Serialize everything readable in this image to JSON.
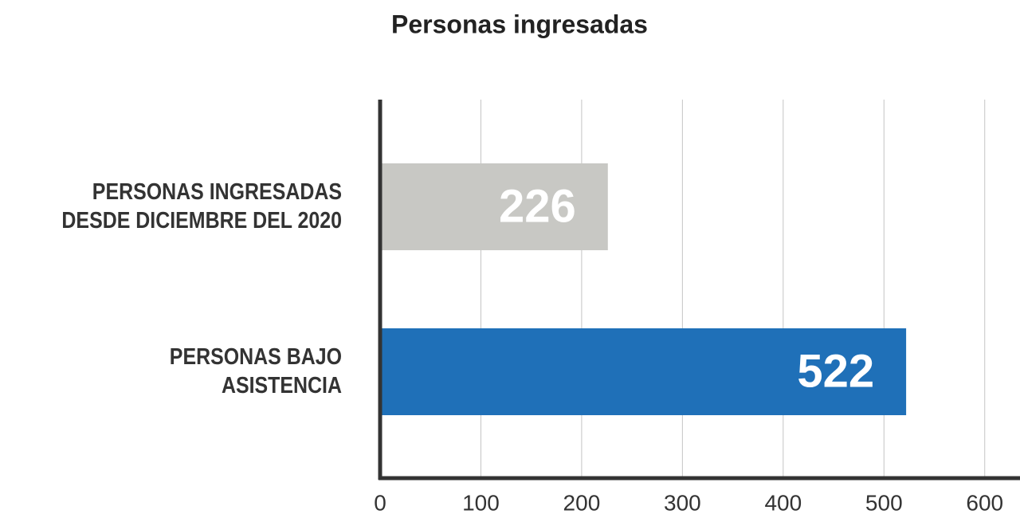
{
  "chart_data": {
    "type": "hbar",
    "title": "Personas ingresadas",
    "categories": [
      "PERSONAS INGRESADAS\nDESDE DICIEMBRE DEL 2020",
      "PERSONAS BAJO\nASISTENCIA"
    ],
    "values": [
      226,
      522
    ],
    "colors": [
      "#c8c8c4",
      "#1f70b8"
    ],
    "xlim": [
      0,
      635
    ],
    "xticks": [
      0,
      100,
      200,
      300,
      400,
      500,
      600
    ],
    "grid": true
  }
}
